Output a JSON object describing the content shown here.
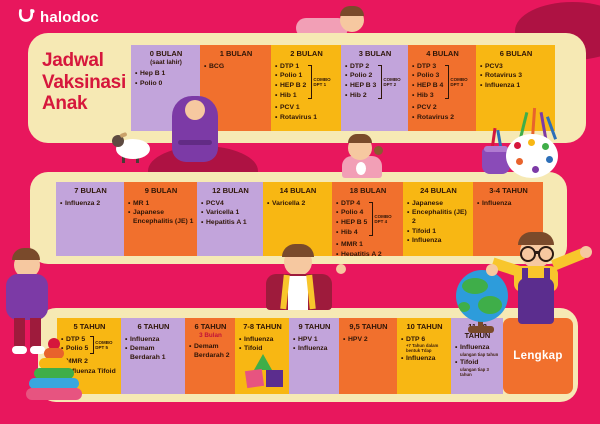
{
  "brand": {
    "name": "halodoc"
  },
  "title": {
    "lines": [
      "Jadwal",
      "Vaksinasi",
      "Anak"
    ]
  },
  "colors": {
    "background": "#E8175D",
    "blob": "#AE1243",
    "panel": "#F6E9B4",
    "column_purple": "#C2A4DB",
    "column_orange": "#F1702D",
    "column_yellow": "#F8B713",
    "title_text": "#D6173C",
    "body_text": "#2E1507",
    "accent_red": "#C01238",
    "badge_text": "#FFFFFF"
  },
  "bands": [
    {
      "columns": [
        {
          "header": "0 BULAN",
          "subheader": "(saat lahir)",
          "color": "purple",
          "items": [
            {
              "text": "Hep B 1"
            },
            {
              "text": "Polio 0"
            }
          ]
        },
        {
          "header": "1 BULAN",
          "color": "orange",
          "items": [
            {
              "text": "BCG"
            }
          ]
        },
        {
          "header": "2 BULAN",
          "color": "yellow",
          "combo": {
            "label": "COMBO DPT 1",
            "count": 4
          },
          "items": [
            {
              "text": "DTP 1"
            },
            {
              "text": "Polio 1"
            },
            {
              "text": "HEP B 2"
            },
            {
              "text": "Hib 1"
            },
            {
              "text": "PCV 1"
            },
            {
              "text": "Rotavirus 1"
            }
          ]
        },
        {
          "header": "3 BULAN",
          "color": "purple",
          "combo": {
            "label": "COMBO DPT 2",
            "count": 4
          },
          "items": [
            {
              "text": "DTP 2"
            },
            {
              "text": "Polio 2"
            },
            {
              "text": "HEP B 3"
            },
            {
              "text": "Hib 2"
            }
          ]
        },
        {
          "header": "4 BULAN",
          "color": "orange",
          "combo": {
            "label": "COMBO DPT 3",
            "count": 4
          },
          "items": [
            {
              "text": "DTP 3"
            },
            {
              "text": "Polio 3"
            },
            {
              "text": "HEP B 4"
            },
            {
              "text": "Hib 3"
            },
            {
              "text": "PCV 2"
            },
            {
              "text": "Rotavirus 2"
            }
          ]
        },
        {
          "header": "6 BULAN",
          "color": "yellow",
          "items": [
            {
              "text": "PCV3"
            },
            {
              "text": "Rotavirus 3"
            },
            {
              "text": "Influenza 1"
            }
          ]
        }
      ]
    },
    {
      "columns": [
        {
          "header": "7 BULAN",
          "color": "purple",
          "items": [
            {
              "text": "Influenza 2"
            }
          ]
        },
        {
          "header": "9 BULAN",
          "color": "orange",
          "items": [
            {
              "text": "MR 1"
            },
            {
              "text": "Japanese Encephalitis (JE) 1"
            }
          ]
        },
        {
          "header": "12 BULAN",
          "color": "purple",
          "items": [
            {
              "text": "PCV4"
            },
            {
              "text": "Varicella 1"
            },
            {
              "text": "Hepatitis A 1"
            }
          ]
        },
        {
          "header": "14 BULAN",
          "color": "yellow",
          "items": [
            {
              "text": "Varicella 2"
            }
          ]
        },
        {
          "header": "18 BULAN",
          "color": "orange",
          "combo": {
            "label": "COMBO DPT 4",
            "count": 4
          },
          "items": [
            {
              "text": "DTP 4"
            },
            {
              "text": "Polio 4"
            },
            {
              "text": "HEP B 5"
            },
            {
              "text": "Hib 4"
            },
            {
              "text": "MMR 1"
            },
            {
              "text": "Hepatitis A 2"
            }
          ]
        },
        {
          "header": "24 BULAN",
          "color": "yellow",
          "items": [
            {
              "text": "Japanese"
            },
            {
              "text": "Encephalitis (JE) 2"
            },
            {
              "text": "Tifoid 1"
            },
            {
              "text": "Influenza"
            }
          ]
        },
        {
          "header": "3-4 TAHUN",
          "color": "orange",
          "items": [
            {
              "text": "Influenza"
            }
          ]
        }
      ]
    },
    {
      "columns": [
        {
          "header": "5 TAHUN",
          "color": "yellow",
          "combo": {
            "label": "COMBO DPT 5",
            "count": 2
          },
          "items": [
            {
              "text": "DTP 5"
            },
            {
              "text": "Polio 5"
            },
            {
              "text": "MMR 2"
            },
            {
              "text": "Influenza Tifoid"
            }
          ]
        },
        {
          "header": "6 TAHUN",
          "color": "purple",
          "items": [
            {
              "text": "Influenza"
            },
            {
              "text": "Demam Berdarah 1"
            }
          ]
        },
        {
          "header": "6 TAHUN",
          "subheader_accent": "3 Bulan",
          "color": "orange",
          "items": [
            {
              "text": "Demam Berdarah 2"
            }
          ]
        },
        {
          "header": "7-8 TAHUN",
          "color": "yellow",
          "items": [
            {
              "text": "Influenza"
            },
            {
              "text": "Tifoid"
            }
          ]
        },
        {
          "header": "9 TAHUN",
          "color": "purple",
          "items": [
            {
              "text": "HPV 1"
            },
            {
              "text": "Influenza"
            }
          ]
        },
        {
          "header": "9,5 TAHUN",
          "color": "orange",
          "items": [
            {
              "text": "HPV 2"
            }
          ]
        },
        {
          "header": "10 TAHUN",
          "color": "yellow",
          "items": [
            {
              "text": "DTP 6",
              "note": "+7 Tahun dalam bentuk Tdap"
            },
            {
              "text": "Influenza"
            }
          ]
        },
        {
          "header": "11-18 TAHUN",
          "color": "purple",
          "items": [
            {
              "text": "Influenza",
              "note": "ulangan tiap tahun"
            },
            {
              "text": "Tifoid",
              "note": "ulangan tiap 3 tahun"
            }
          ]
        },
        {
          "type": "badge",
          "label": "Lengkap",
          "color": "orange"
        }
      ]
    }
  ],
  "decor": [
    "halodoc-logo-icon",
    "crawling-baby",
    "dark-blob-top-right",
    "dark-blob-left",
    "sheep",
    "swaddled-baby",
    "toddler-eating-cookie",
    "paint-palette",
    "brush-cup",
    "walking-kid",
    "rainbow-stack-toy",
    "backpack-kid",
    "toy-blocks",
    "globe",
    "glasses-kid"
  ]
}
